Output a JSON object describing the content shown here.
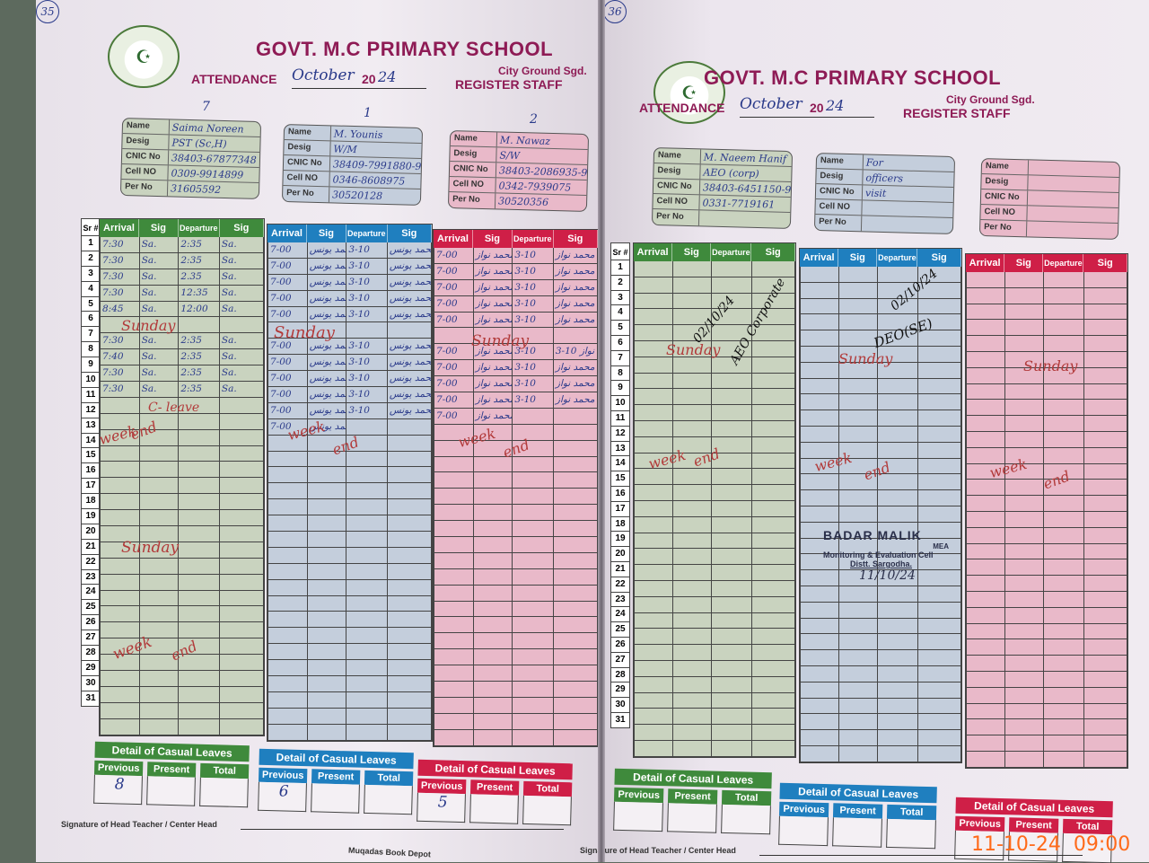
{
  "left_page": {
    "page_number": "35",
    "school": "GOVT. M.C PRIMARY SCHOOL",
    "location": "City Ground Sgd.",
    "attendance_label": "ATTENDANCE",
    "month": "October",
    "year_prefix": "20",
    "year_suffix": "24",
    "register_label": "REGISTER STAFF",
    "card_marks": [
      "7",
      "1",
      "2"
    ],
    "staff": [
      {
        "Name": "Saima Noreen",
        "Desig": "PST (Sc,H)",
        "CNIC No": "38403-67877348",
        "Cell NO": "0309-9914899",
        "Per No": "31605592"
      },
      {
        "Name": "M. Younis",
        "Desig": "W/M",
        "CNIC No": "38409-7991880-9",
        "Cell NO": "0346-8608975",
        "Per No": "30520128"
      },
      {
        "Name": "M. Nawaz",
        "Desig": "S/W",
        "CNIC No": "38403-2086935-9",
        "Cell NO": "0342-7939075",
        "Per No": "30520356"
      }
    ],
    "attendance": [
      {
        "1": [
          "7:30",
          "Sa.",
          "2:35",
          "Sa."
        ],
        "2": [
          "7:30",
          "Sa.",
          "2:35",
          "Sa."
        ],
        "3": [
          "7:30",
          "Sa.",
          "2.35",
          "Sa."
        ],
        "4": [
          "7:30",
          "Sa.",
          "12:35",
          "Sa."
        ],
        "5": [
          "8:45",
          "Sa.",
          "12:00",
          "Sa."
        ],
        "7": [
          "7:30",
          "Sa.",
          "2:35",
          "Sa."
        ],
        "8": [
          "7:40",
          "Sa.",
          "2:35",
          "Sa."
        ],
        "9": [
          "7:30",
          "Sa.",
          "2:35",
          "Sa."
        ],
        "10": [
          "7:30",
          "Sa.",
          "2:35",
          "Sa."
        ]
      },
      {
        "1": [
          "7-00",
          "محمد یونس",
          "3-10",
          "محمد یونس"
        ],
        "2": [
          "7-00",
          "محمد یونس",
          "3-10",
          "محمد یونس"
        ],
        "3": [
          "7-00",
          "محمد یونس",
          "3-10",
          "محمد یونس"
        ],
        "4": [
          "7-00",
          "محمد یونس",
          "3-10",
          "محمد یونس"
        ],
        "5": [
          "7-00",
          "محمد یونس",
          "3-10",
          "محمد یونس"
        ],
        "7": [
          "7-00",
          "محمد یونس",
          "3-10",
          "محمد یونس"
        ],
        "8": [
          "7-00",
          "محمد یونس",
          "3-10",
          "محمد یونس"
        ],
        "9": [
          "7-00",
          "محمد یونس",
          "3-10",
          "محمد یونس"
        ],
        "10": [
          "7-00",
          "محمد یونس",
          "3-10",
          "محمد یونس"
        ],
        "11": [
          "7-00",
          "محمد یونس",
          "3-10",
          "محمد یونس"
        ],
        "12": [
          "7-00",
          "محمد یونس",
          "",
          ""
        ]
      },
      {
        "1": [
          "7-00",
          "محمد نواز",
          "3-10",
          "محمد نواز"
        ],
        "2": [
          "7-00",
          "محمد نواز",
          "3-10",
          "محمد نواز"
        ],
        "3": [
          "7-00",
          "محمد نواز",
          "3-10",
          "محمد نواز"
        ],
        "4": [
          "7-00",
          "محمد نواز",
          "3-10",
          "محمد نواز"
        ],
        "5": [
          "7-00",
          "محمد نواز",
          "3-10",
          "محمد نواز"
        ],
        "7": [
          "7-00",
          "محمد نواز",
          "3-10",
          "3-10 محمد نواز"
        ],
        "8": [
          "7-00",
          "محمد نواز",
          "3-10",
          "محمد نواز"
        ],
        "9": [
          "7-00",
          "محمد نواز",
          "3-10",
          "محمد نواز"
        ],
        "10": [
          "7-00",
          "محمد نواز",
          "3-10",
          "محمد نواز"
        ],
        "11": [
          "7-00",
          "محمد نواز",
          "",
          ""
        ]
      }
    ],
    "notes": {
      "sunday": "Sunday",
      "c_leave": "C- leave",
      "week": "week",
      "end": "end"
    },
    "leaves": [
      {
        "previous": "8",
        "present": "",
        "total": ""
      },
      {
        "previous": "6",
        "present": "",
        "total": ""
      },
      {
        "previous": "5",
        "present": "",
        "total": ""
      }
    ],
    "signature_label": "Signature of Head Teacher / Center Head",
    "publisher": "Muqadas Book Depot"
  },
  "right_page": {
    "page_number": "36",
    "school": "GOVT. M.C PRIMARY SCHOOL",
    "location": "City Ground Sgd.",
    "attendance_label": "ATTENDANCE",
    "month": "October",
    "year_prefix": "20",
    "year_suffix": "24",
    "register_label": "REGISTER STAFF",
    "staff": [
      {
        "Name": "M. Naeem Hanif",
        "Desig": "AEO (corp)",
        "CNIC No": "38403-6451150-9",
        "Cell NO": "0331-7719161",
        "Per No": ""
      },
      {
        "Name": "For",
        "Desig": "officers",
        "CNIC No": "visit",
        "Cell NO": "",
        "Per No": ""
      },
      {
        "Name": "",
        "Desig": "",
        "CNIC No": "",
        "Cell NO": "",
        "Per No": ""
      }
    ],
    "notes": {
      "date1": "02/10/24",
      "aeo": "AEO Corporate",
      "date2": "02/10/24",
      "deo": "DEO(SE)",
      "sunday": "Sunday",
      "week": "week",
      "end": "end"
    },
    "stamp": {
      "name": "BADAR MALIK",
      "title": "MEA",
      "dept": "Monitoring & Evaluation Cell",
      "district": "Distt. Sargodha.",
      "date": "11/10/24"
    },
    "leaves": [
      {
        "previous": "",
        "present": "",
        "total": ""
      },
      {
        "previous": "",
        "present": "",
        "total": ""
      },
      {
        "previous": "",
        "present": "",
        "total": ""
      }
    ],
    "signature_label": "Signature of Head Teacher / Center Head"
  },
  "common": {
    "sr_label": "Sr #",
    "columns": [
      "Arrival",
      "Sig",
      "Departure",
      "Sig"
    ],
    "card_keys": [
      "Name",
      "Desig",
      "CNIC No",
      "Cell NO",
      "Per No"
    ],
    "leave_title": "Detail of Casual Leaves",
    "leave_cols": [
      "Previous",
      "Present",
      "Total"
    ],
    "colors": {
      "green": "#3f8a3c",
      "blue": "#1f7fbf",
      "red": "#cf1f47",
      "green_bg": "#c9d3bf",
      "blue_bg": "#c4cedc",
      "pink_bg": "#e9b9c9",
      "title": "#8e1b55"
    }
  },
  "camera_timestamp": "11-10-24  09:00"
}
